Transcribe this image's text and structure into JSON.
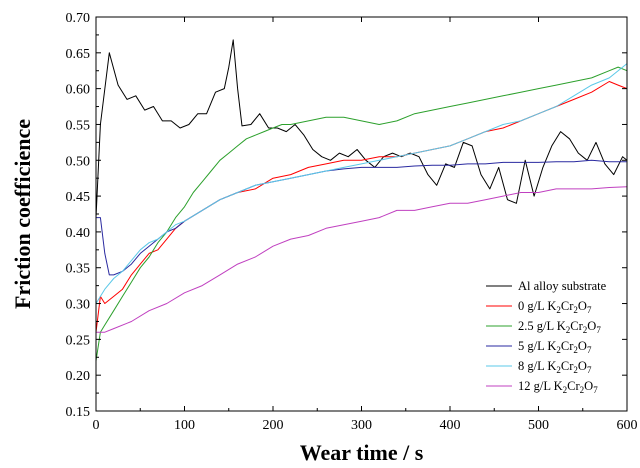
{
  "chart_data": {
    "type": "line",
    "title": "",
    "xlabel": "Wear time / s",
    "ylabel": "Friction coefficience",
    "xlim": [
      0,
      600
    ],
    "ylim": [
      0.15,
      0.7
    ],
    "xticks": [
      0,
      100,
      200,
      300,
      400,
      500,
      600
    ],
    "yticks": [
      0.15,
      0.2,
      0.25,
      0.3,
      0.35,
      0.4,
      0.45,
      0.5,
      0.55,
      0.6,
      0.65,
      0.7
    ],
    "xtick_labels": [
      "0",
      "100",
      "200",
      "300",
      "400",
      "500",
      "600"
    ],
    "ytick_labels": [
      "0.15",
      "0.20",
      "0.25",
      "0.30",
      "0.35",
      "0.40",
      "0.45",
      "0.50",
      "0.55",
      "0.60",
      "0.65",
      "0.70"
    ],
    "grid": false,
    "legend_position": "lower-right",
    "series": [
      {
        "name": "Al alloy substrate",
        "legend": {
          "main": "Al alloy substrate"
        },
        "color": "#000000",
        "x": [
          0,
          5,
          15,
          25,
          35,
          45,
          55,
          65,
          75,
          85,
          95,
          105,
          115,
          125,
          135,
          145,
          150,
          155,
          160,
          165,
          175,
          185,
          195,
          205,
          215,
          225,
          235,
          245,
          255,
          265,
          275,
          285,
          295,
          305,
          315,
          325,
          335,
          345,
          355,
          365,
          375,
          385,
          395,
          405,
          415,
          425,
          435,
          445,
          455,
          465,
          475,
          485,
          495,
          505,
          515,
          525,
          535,
          545,
          555,
          565,
          575,
          585,
          595,
          600
        ],
        "y": [
          0.42,
          0.55,
          0.65,
          0.605,
          0.585,
          0.59,
          0.57,
          0.575,
          0.555,
          0.555,
          0.545,
          0.55,
          0.565,
          0.565,
          0.595,
          0.6,
          0.63,
          0.668,
          0.6,
          0.548,
          0.55,
          0.565,
          0.545,
          0.545,
          0.54,
          0.55,
          0.535,
          0.515,
          0.505,
          0.5,
          0.51,
          0.505,
          0.515,
          0.5,
          0.49,
          0.505,
          0.51,
          0.505,
          0.51,
          0.505,
          0.48,
          0.465,
          0.495,
          0.49,
          0.525,
          0.52,
          0.48,
          0.46,
          0.49,
          0.445,
          0.44,
          0.5,
          0.45,
          0.49,
          0.52,
          0.54,
          0.53,
          0.51,
          0.5,
          0.525,
          0.495,
          0.48,
          0.505,
          0.5
        ]
      },
      {
        "name": "0 g/L K2Cr2O7",
        "legend": {
          "main": "0 g/L K",
          "sub1": "2",
          "mid": "Cr",
          "sub2": "2",
          "tail": "O",
          "sub3": "7"
        },
        "color": "#ff0000",
        "x": [
          0,
          5,
          10,
          20,
          30,
          40,
          50,
          60,
          70,
          80,
          90,
          100,
          120,
          140,
          160,
          180,
          200,
          220,
          240,
          260,
          280,
          300,
          320,
          340,
          360,
          380,
          400,
          420,
          440,
          460,
          480,
          500,
          520,
          540,
          560,
          580,
          590,
          600
        ],
        "y": [
          0.26,
          0.31,
          0.3,
          0.31,
          0.32,
          0.34,
          0.355,
          0.37,
          0.375,
          0.39,
          0.405,
          0.415,
          0.43,
          0.445,
          0.455,
          0.46,
          0.475,
          0.48,
          0.49,
          0.495,
          0.5,
          0.5,
          0.505,
          0.505,
          0.51,
          0.515,
          0.52,
          0.53,
          0.54,
          0.545,
          0.555,
          0.565,
          0.575,
          0.585,
          0.595,
          0.61,
          0.605,
          0.6
        ]
      },
      {
        "name": "2.5 g/L K2Cr2O7",
        "legend": {
          "main": "2.5 g/L K",
          "sub1": "2",
          "mid": "Cr",
          "sub2": "2",
          "tail": "O",
          "sub3": "7"
        },
        "color": "#2ca02c",
        "x": [
          0,
          5,
          10,
          20,
          30,
          40,
          50,
          60,
          70,
          80,
          90,
          100,
          110,
          120,
          130,
          140,
          150,
          160,
          170,
          180,
          190,
          200,
          210,
          220,
          240,
          260,
          280,
          300,
          320,
          340,
          360,
          380,
          400,
          420,
          440,
          460,
          480,
          500,
          520,
          540,
          560,
          580,
          590,
          600
        ],
        "y": [
          0.22,
          0.26,
          0.27,
          0.29,
          0.31,
          0.33,
          0.35,
          0.365,
          0.385,
          0.4,
          0.42,
          0.435,
          0.455,
          0.47,
          0.485,
          0.5,
          0.51,
          0.52,
          0.53,
          0.535,
          0.54,
          0.545,
          0.55,
          0.55,
          0.555,
          0.56,
          0.56,
          0.555,
          0.55,
          0.555,
          0.565,
          0.57,
          0.575,
          0.58,
          0.585,
          0.59,
          0.595,
          0.6,
          0.605,
          0.61,
          0.615,
          0.625,
          0.63,
          0.625
        ]
      },
      {
        "name": "5 g/L K2Cr2O7",
        "legend": {
          "main": "5 g/L K",
          "sub1": "2",
          "mid": "Cr",
          "sub2": "2",
          "tail": "O",
          "sub3": "7"
        },
        "color": "#2a2aa0",
        "x": [
          0,
          5,
          10,
          15,
          20,
          30,
          40,
          50,
          60,
          70,
          80,
          90,
          100,
          120,
          140,
          160,
          180,
          200,
          220,
          240,
          260,
          280,
          300,
          320,
          340,
          360,
          380,
          400,
          420,
          440,
          460,
          480,
          500,
          520,
          540,
          560,
          580,
          600
        ],
        "y": [
          0.42,
          0.42,
          0.37,
          0.34,
          0.34,
          0.345,
          0.355,
          0.37,
          0.38,
          0.39,
          0.4,
          0.405,
          0.415,
          0.43,
          0.445,
          0.455,
          0.465,
          0.47,
          0.475,
          0.48,
          0.485,
          0.488,
          0.49,
          0.49,
          0.49,
          0.492,
          0.493,
          0.493,
          0.495,
          0.495,
          0.497,
          0.497,
          0.497,
          0.498,
          0.498,
          0.5,
          0.498,
          0.498
        ]
      },
      {
        "name": "8 g/L K2Cr2O7",
        "legend": {
          "main": "8 g/L K",
          "sub1": "2",
          "mid": "Cr",
          "sub2": "2",
          "tail": "O",
          "sub3": "7"
        },
        "color": "#5bc8e8",
        "x": [
          0,
          10,
          20,
          30,
          40,
          50,
          60,
          70,
          80,
          90,
          100,
          120,
          140,
          160,
          180,
          200,
          220,
          240,
          260,
          280,
          300,
          320,
          340,
          360,
          380,
          400,
          420,
          440,
          460,
          480,
          500,
          520,
          540,
          560,
          580,
          600
        ],
        "y": [
          0.3,
          0.32,
          0.335,
          0.345,
          0.36,
          0.375,
          0.385,
          0.39,
          0.4,
          0.41,
          0.415,
          0.43,
          0.445,
          0.455,
          0.465,
          0.47,
          0.475,
          0.48,
          0.485,
          0.49,
          0.495,
          0.5,
          0.505,
          0.51,
          0.515,
          0.52,
          0.53,
          0.54,
          0.55,
          0.555,
          0.565,
          0.575,
          0.59,
          0.605,
          0.615,
          0.635
        ]
      },
      {
        "name": "12 g/L K2Cr2O7",
        "legend": {
          "main": "12 g/L K",
          "sub1": "2",
          "mid": "Cr",
          "sub2": "2",
          "tail": "O",
          "sub3": "7"
        },
        "color": "#c040c0",
        "x": [
          0,
          10,
          20,
          40,
          60,
          80,
          100,
          120,
          140,
          160,
          180,
          200,
          220,
          240,
          260,
          280,
          300,
          320,
          340,
          360,
          380,
          400,
          420,
          440,
          460,
          480,
          500,
          520,
          540,
          560,
          580,
          600
        ],
        "y": [
          0.26,
          0.26,
          0.265,
          0.275,
          0.29,
          0.3,
          0.315,
          0.325,
          0.34,
          0.355,
          0.365,
          0.38,
          0.39,
          0.395,
          0.405,
          0.41,
          0.415,
          0.42,
          0.43,
          0.43,
          0.435,
          0.44,
          0.44,
          0.445,
          0.45,
          0.455,
          0.455,
          0.46,
          0.46,
          0.46,
          0.462,
          0.463
        ]
      }
    ]
  }
}
